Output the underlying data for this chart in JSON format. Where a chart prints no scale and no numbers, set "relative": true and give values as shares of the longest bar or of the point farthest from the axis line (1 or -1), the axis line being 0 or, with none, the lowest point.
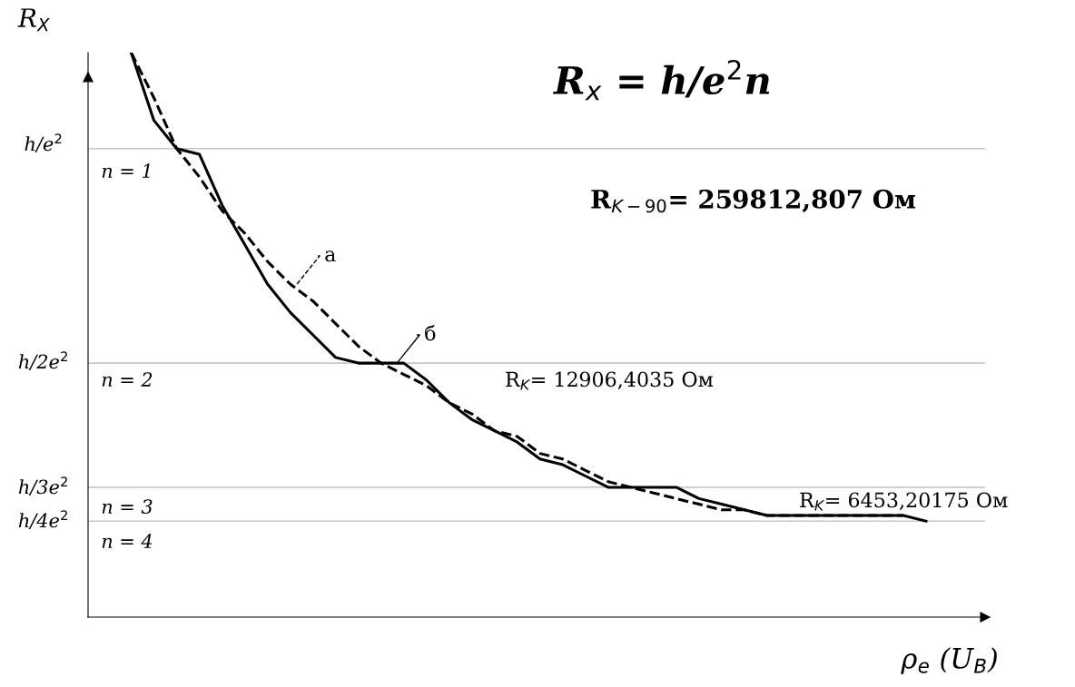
{
  "chart_data": {
    "type": "line",
    "title": "R$_{x}$ = h/e$^{2}$n",
    "ylabel": "R$_{X}$",
    "xlabel": "ρ$_{e}$ (U$_{B}$)",
    "relative": true,
    "categories": [
      null,
      null,
      null,
      null,
      null,
      null,
      null,
      null,
      null,
      null,
      null,
      null,
      null,
      null,
      null,
      null,
      null,
      null,
      null,
      null,
      null,
      null,
      null,
      null,
      null,
      null,
      null,
      null,
      null,
      null,
      null,
      null,
      null,
      null,
      null,
      null
    ],
    "series": [
      {
        "name": "б",
        "color": "#000000",
        "line_style": "solid",
        "values": [
          1,
          0.88,
          0.83,
          0.82,
          0.73,
          0.66,
          0.59,
          0.54,
          0.5,
          0.46,
          0.45,
          0.45,
          0.45,
          0.42,
          0.38,
          0.35,
          0.33,
          0.31,
          0.28,
          0.27,
          0.25,
          0.23,
          0.23,
          0.23,
          0.23,
          0.21,
          0.2,
          0.19,
          0.18,
          0.18,
          0.18,
          0.18,
          0.18,
          0.18,
          0.18,
          0.17
        ]
      },
      {
        "name": "а",
        "color": "#000000",
        "line_style": "dashed",
        "values": [
          1,
          0.92,
          0.83,
          0.78,
          0.72,
          0.68,
          0.63,
          0.59,
          0.56,
          0.52,
          0.48,
          0.45,
          0.43,
          0.41,
          0.38,
          0.36,
          0.33,
          0.32,
          0.29,
          0.28,
          0.26,
          0.24,
          0.23,
          0.22,
          0.21,
          0.2,
          0.19,
          0.19,
          0.18,
          0.18,
          0.18,
          0.18,
          0.18,
          0.18,
          0.18,
          null
        ]
      }
    ],
    "ref_lines": [
      {
        "axis": "y",
        "value": 0.83,
        "color": "#c8c8c8"
      },
      {
        "axis": "y",
        "value": 0.45,
        "color": "#c8c8c8"
      },
      {
        "axis": "y",
        "value": 0.23,
        "color": "#c8c8c8"
      },
      {
        "axis": "y",
        "value": 0.17,
        "color": "#c8c8c8"
      }
    ],
    "annotations": [
      "h/e$^{2}$",
      "h/2e$^{2}$",
      "h/3e$^{2}$",
      "h/4e$^{2}$",
      "n = 1",
      "n = 2",
      "n = 3",
      "n = 4",
      "R$_{K−90}$= 259812,807 Ом",
      "R$_{K}$= 12906,4035 Ом",
      "R$_{K}$= 6453,20175 Ом"
    ]
  }
}
